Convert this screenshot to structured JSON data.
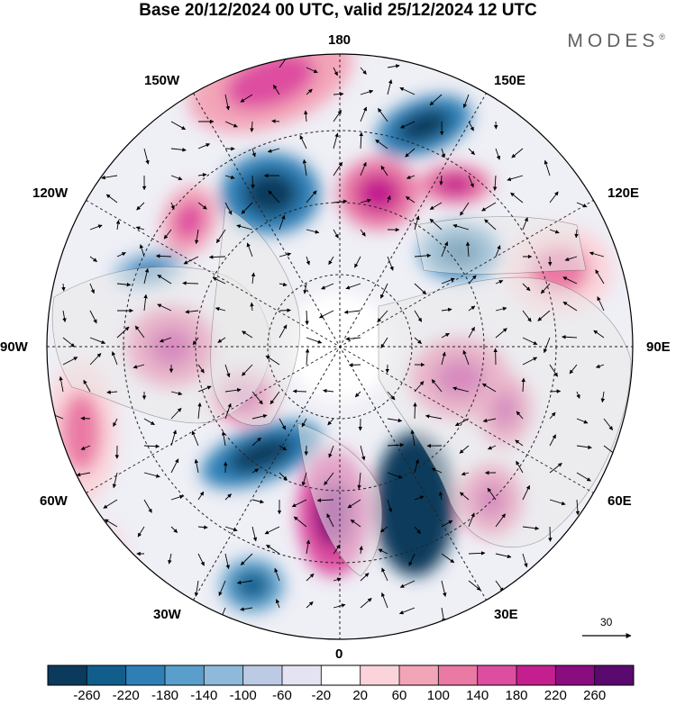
{
  "header": {
    "title": "Base 20/12/2024 00 UTC, valid 25/12/2024 12 UTC",
    "brand": "MODES",
    "brand_mark": "®"
  },
  "map": {
    "projection": "north polar stereographic",
    "longitude_labels": {
      "top": "180",
      "bottom": "0",
      "left": "90W",
      "right": "90E",
      "upper_left": "150W",
      "upper_right": "150E",
      "mid_left": "120W",
      "mid_right": "120E",
      "lower_left": "60W",
      "lower_right": "60E",
      "bottom_left": "30W",
      "bottom_right": "30E"
    },
    "reference_vector_label": "30",
    "colors": {
      "land": "#e9e9e9",
      "graticule": "#222222",
      "contour": "#111111"
    }
  },
  "colorbar": {
    "tick_labels": [
      "-260",
      "-220",
      "-180",
      "-140",
      "-100",
      "-60",
      "-20",
      "20",
      "60",
      "100",
      "140",
      "180",
      "220",
      "260"
    ],
    "colors": [
      "#0b3a5c",
      "#115e8c",
      "#2f7fb6",
      "#5a9fcb",
      "#8fb9da",
      "#bccbe3",
      "#e3e3f1",
      "#ffffff",
      "#fad4da",
      "#f3a5b8",
      "#ea79a4",
      "#de4ea0",
      "#c41f8f",
      "#8a0d7f",
      "#5a0a6e"
    ]
  }
}
